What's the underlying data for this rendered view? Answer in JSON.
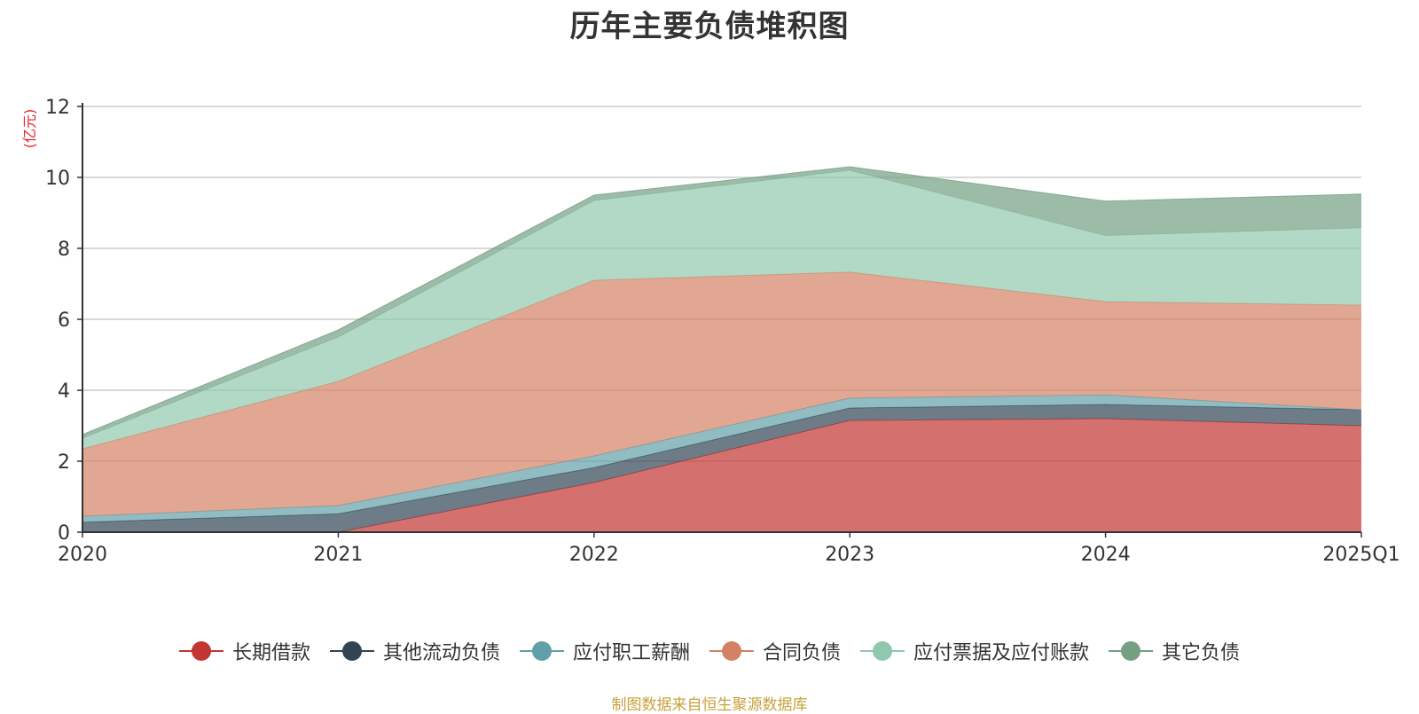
{
  "chart_data": {
    "type": "area",
    "stacked": true,
    "title": "历年主要负债堆积图",
    "ylabel": "(亿元)",
    "ylim": [
      0,
      12
    ],
    "yticks": [
      0,
      2,
      4,
      6,
      8,
      10,
      12
    ],
    "grid": true,
    "legend_position": "bottom",
    "categories": [
      "2020",
      "2021",
      "2022",
      "2023",
      "2024",
      "2025Q1"
    ],
    "series": [
      {
        "name": "长期借款",
        "color": "#c23531",
        "values": [
          0.0,
          0.0,
          1.4,
          3.15,
          3.2,
          3.0
        ]
      },
      {
        "name": "其他流动负债",
        "color": "#2f4554",
        "values": [
          0.28,
          0.52,
          0.42,
          0.35,
          0.4,
          0.45
        ]
      },
      {
        "name": "应付职工薪酬",
        "color": "#61a0a8",
        "values": [
          0.17,
          0.23,
          0.33,
          0.28,
          0.27,
          0.0
        ]
      },
      {
        "name": "合同负债",
        "color": "#d48265",
        "values": [
          1.9,
          3.5,
          4.95,
          3.55,
          2.63,
          2.95
        ]
      },
      {
        "name": "应付票据及应付账款",
        "color": "#91c7ae",
        "values": [
          0.3,
          1.25,
          2.25,
          2.87,
          1.86,
          2.18
        ]
      },
      {
        "name": "其它负债",
        "color": "#749f83",
        "values": [
          0.1,
          0.2,
          0.15,
          0.1,
          0.97,
          0.95
        ]
      }
    ]
  },
  "source_note": "制图数据来自恒生聚源数据库",
  "colors": {
    "title": "#333333",
    "unit_label": "#e8212b",
    "source_note": "#c8a13c",
    "axis": "#333333",
    "grid": "#cccccc"
  }
}
